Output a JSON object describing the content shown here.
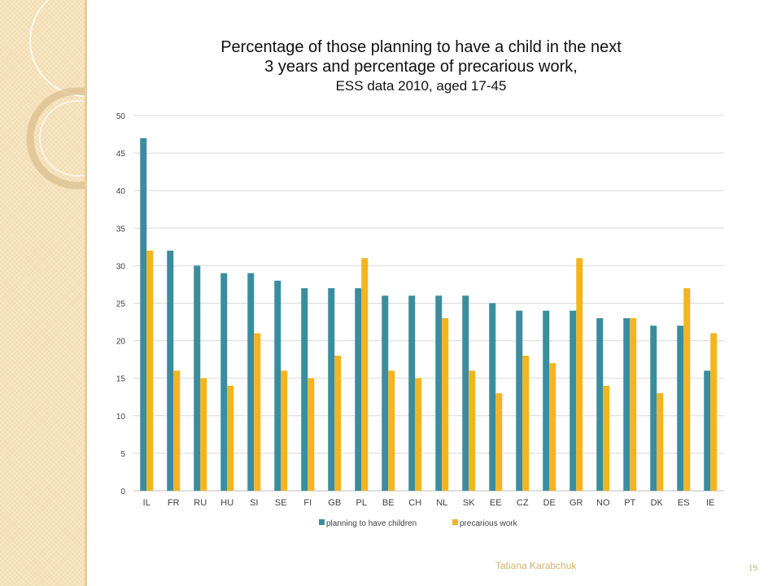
{
  "slide": {
    "title_line1": "Percentage of those planning to have a child in the next",
    "title_line2": "3 years and percentage of precarious work,",
    "title_line3": "ESS data 2010, aged 17-45",
    "author": "Tatiana Karabchuk",
    "page_number": "19"
  },
  "colors": {
    "series_planning": "#3a8d9e",
    "series_precarious": "#f2b51f",
    "grid": "#d9d9d9",
    "sidebar": "#f3ddb2"
  },
  "chart_data": {
    "type": "bar",
    "title": "Percentage of those planning to have a child in the next 3 years and percentage of precarious work, ESS data 2010, aged 17-45",
    "categories": [
      "IL",
      "FR",
      "RU",
      "HU",
      "SI",
      "SE",
      "FI",
      "GB",
      "PL",
      "BE",
      "CH",
      "NL",
      "SK",
      "EE",
      "CZ",
      "DE",
      "GR",
      "NO",
      "PT",
      "DK",
      "ES",
      "IE"
    ],
    "series": [
      {
        "name": "planning to have children",
        "values": [
          47,
          32,
          30,
          29,
          29,
          28,
          27,
          27,
          27,
          26,
          26,
          26,
          26,
          25,
          24,
          24,
          24,
          23,
          23,
          22,
          22,
          16
        ]
      },
      {
        "name": "precarious work",
        "values": [
          32,
          16,
          15,
          14,
          21,
          16,
          15,
          18,
          31,
          16,
          15,
          23,
          16,
          13,
          18,
          17,
          31,
          14,
          23,
          13,
          27,
          21
        ]
      }
    ],
    "yticks": [
      0,
      5,
      10,
      15,
      20,
      25,
      30,
      35,
      40,
      45,
      50
    ],
    "ylim": [
      0,
      50
    ],
    "grid": true,
    "legend_position": "bottom"
  }
}
